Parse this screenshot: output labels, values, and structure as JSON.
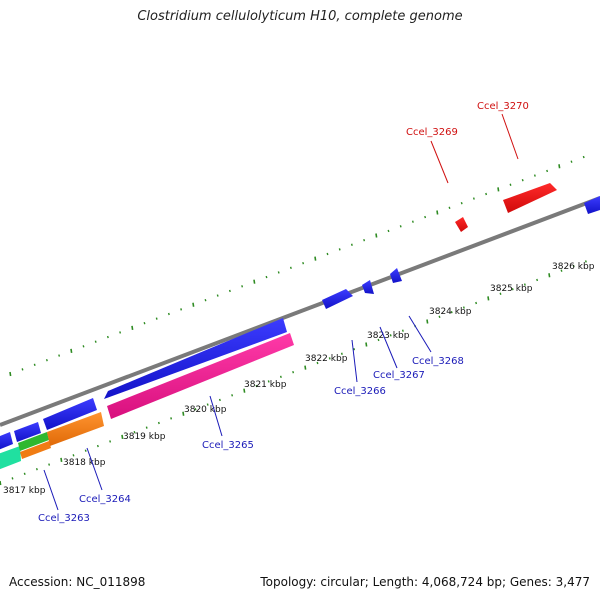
{
  "title": "Clostridium cellulolyticum H10, complete genome",
  "footer": {
    "accession": "Accession: NC_011898",
    "info": "Topology: circular; Length: 4,068,724 bp; Genes: 3,477"
  },
  "colors": {
    "backbone": "#7a7a7a",
    "tick": "#2e8b22",
    "blue": "#1c1ce0",
    "red": "#e01414",
    "magenta": "#e8198e",
    "orange": "#f07c14",
    "green": "#2fb82f",
    "teal": "#20e0a0",
    "blue_label": "#1a1ab8",
    "red_label": "#d01010"
  },
  "scale_labels": [
    "3817 kbp",
    "3818 kbp",
    "3819 kbp",
    "3820 kbp",
    "3821 kbp",
    "3822 kbp",
    "3823 kbp",
    "3824 kbp",
    "3825 kbp",
    "3826 kbp"
  ],
  "gene_labels": [
    {
      "name": "Ccel_3263",
      "color": "blue"
    },
    {
      "name": "Ccel_3264",
      "color": "blue"
    },
    {
      "name": "Ccel_3265",
      "color": "blue"
    },
    {
      "name": "Ccel_3266",
      "color": "blue"
    },
    {
      "name": "Ccel_3267",
      "color": "blue"
    },
    {
      "name": "Ccel_3268",
      "color": "blue"
    },
    {
      "name": "Ccel_3269",
      "color": "red"
    },
    {
      "name": "Ccel_3270",
      "color": "red"
    }
  ]
}
